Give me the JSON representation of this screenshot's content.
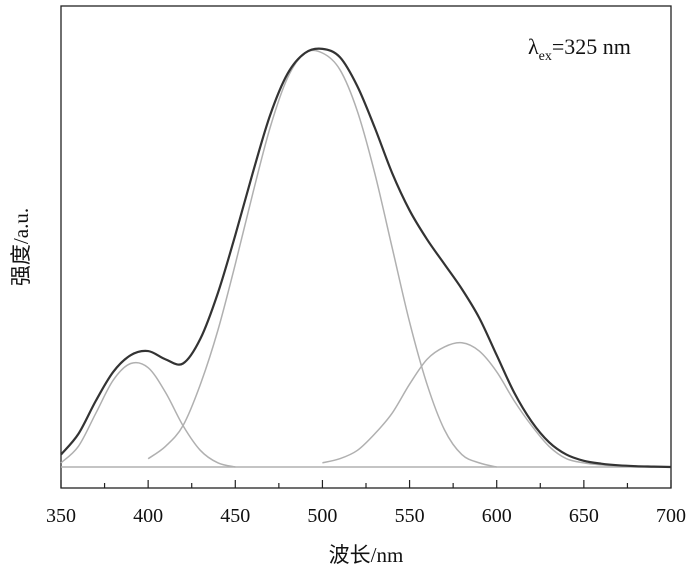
{
  "chart_data": {
    "type": "line",
    "title": "",
    "xlabel": "波长/nm",
    "ylabel": "强度/a.u.",
    "xlim": [
      350,
      700
    ],
    "xticks": [
      350,
      400,
      450,
      500,
      550,
      600,
      650,
      700
    ],
    "ylim": [
      0,
      1.0
    ],
    "y_tick_labels_shown": false,
    "grid": false,
    "annotation": {
      "symbol": "λ",
      "subscript": "ex",
      "text": "=325 nm"
    },
    "series": [
      {
        "role": "total emission",
        "color": "#333333",
        "x": [
          350,
          360,
          370,
          380,
          390,
          400,
          410,
          420,
          430,
          440,
          450,
          460,
          470,
          480,
          490,
          500,
          510,
          520,
          530,
          540,
          550,
          560,
          570,
          580,
          590,
          600,
          610,
          620,
          630,
          640,
          650,
          660,
          670,
          680,
          690,
          700
        ],
        "y": [
          0.03,
          0.08,
          0.16,
          0.23,
          0.27,
          0.28,
          0.26,
          0.25,
          0.31,
          0.42,
          0.56,
          0.71,
          0.85,
          0.95,
          1.0,
          1.01,
          0.99,
          0.92,
          0.82,
          0.71,
          0.62,
          0.55,
          0.49,
          0.43,
          0.36,
          0.27,
          0.18,
          0.11,
          0.06,
          0.03,
          0.015,
          0.008,
          0.004,
          0.002,
          0.001,
          0.0
        ]
      },
      {
        "role": "fitted peak 1",
        "color": "#b0b0b0",
        "x": [
          350,
          360,
          370,
          380,
          390,
          400,
          410,
          420,
          430,
          440,
          450
        ],
        "y": [
          0.01,
          0.05,
          0.13,
          0.21,
          0.25,
          0.24,
          0.18,
          0.1,
          0.04,
          0.01,
          0.0
        ]
      },
      {
        "role": "fitted peak 2",
        "color": "#b0b0b0",
        "x": [
          400,
          410,
          420,
          430,
          440,
          450,
          460,
          470,
          480,
          490,
          500,
          510,
          520,
          530,
          540,
          550,
          560,
          570,
          580,
          590,
          600
        ],
        "y": [
          0.02,
          0.05,
          0.1,
          0.2,
          0.33,
          0.49,
          0.66,
          0.82,
          0.94,
          1.0,
          1.0,
          0.96,
          0.86,
          0.71,
          0.53,
          0.35,
          0.2,
          0.09,
          0.03,
          0.01,
          0.0
        ]
      },
      {
        "role": "fitted peak 3",
        "color": "#b0b0b0",
        "x": [
          500,
          510,
          520,
          530,
          540,
          550,
          560,
          570,
          580,
          590,
          600,
          610,
          620,
          630,
          640,
          650,
          660,
          670,
          680,
          700
        ],
        "y": [
          0.01,
          0.02,
          0.04,
          0.08,
          0.13,
          0.2,
          0.26,
          0.29,
          0.3,
          0.28,
          0.23,
          0.16,
          0.1,
          0.05,
          0.02,
          0.01,
          0.005,
          0.002,
          0.0,
          0.0
        ]
      },
      {
        "role": "baseline",
        "color": "#b0b0b0",
        "x": [
          350,
          700
        ],
        "y": [
          0.0,
          0.0
        ]
      }
    ]
  }
}
